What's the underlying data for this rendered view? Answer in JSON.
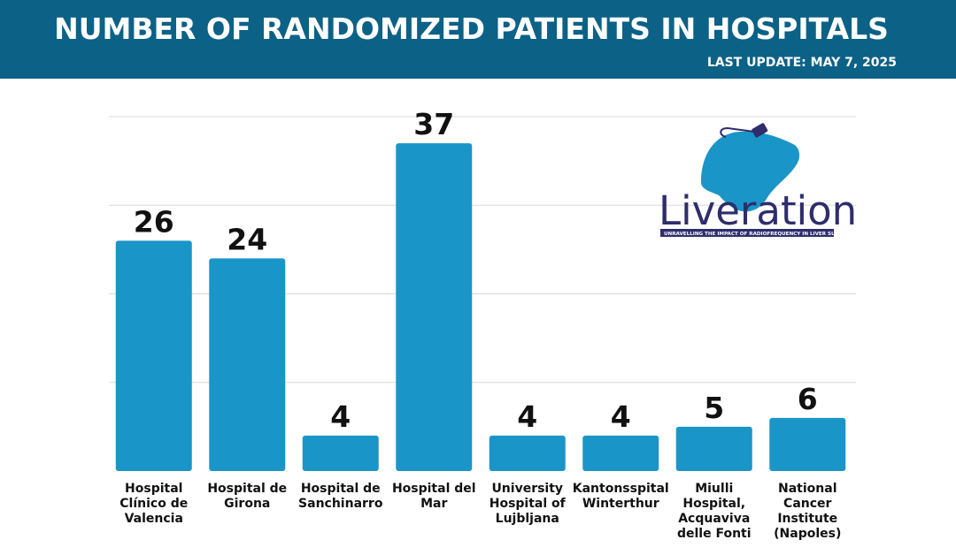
{
  "header": {
    "title": "NUMBER OF RANDOMIZED PATIENTS IN HOSPITALS",
    "last_update": "LAST UPDATE: MAY 7, 2025"
  },
  "logo": {
    "name": "Liveration",
    "tagline": "UNRAVELLING THE IMPACT OF RADIOFREQUENCY IN LIVER SURGERY"
  },
  "colors": {
    "header_bg": "#0c6186",
    "bar": "#1a95c8",
    "gridline": "#d9d9d9",
    "logo_liver": "#1a95c8",
    "logo_text": "#2f2d6b"
  },
  "chart_data": {
    "type": "bar",
    "title": "NUMBER OF RANDOMIZED PATIENTS IN HOSPITALS",
    "xlabel": "",
    "ylabel": "",
    "ylim": [
      0,
      40
    ],
    "grid": true,
    "categories": [
      [
        "Hospital",
        "Clínico de",
        "Valencia"
      ],
      [
        "Hospital de",
        "Girona"
      ],
      [
        "Hospital de",
        "Sanchinarro"
      ],
      [
        "Hospital del",
        "Mar"
      ],
      [
        "University",
        "Hospital of",
        "Lujbljana"
      ],
      [
        "Kantonsspital",
        "Winterthur"
      ],
      [
        "Miulli",
        "Hospital,",
        "Acquaviva",
        "delle Fonti"
      ],
      [
        "National",
        "Cancer",
        "Institute",
        "(Napoles)"
      ]
    ],
    "values": [
      26,
      24,
      4,
      37,
      4,
      4,
      5,
      6
    ]
  }
}
